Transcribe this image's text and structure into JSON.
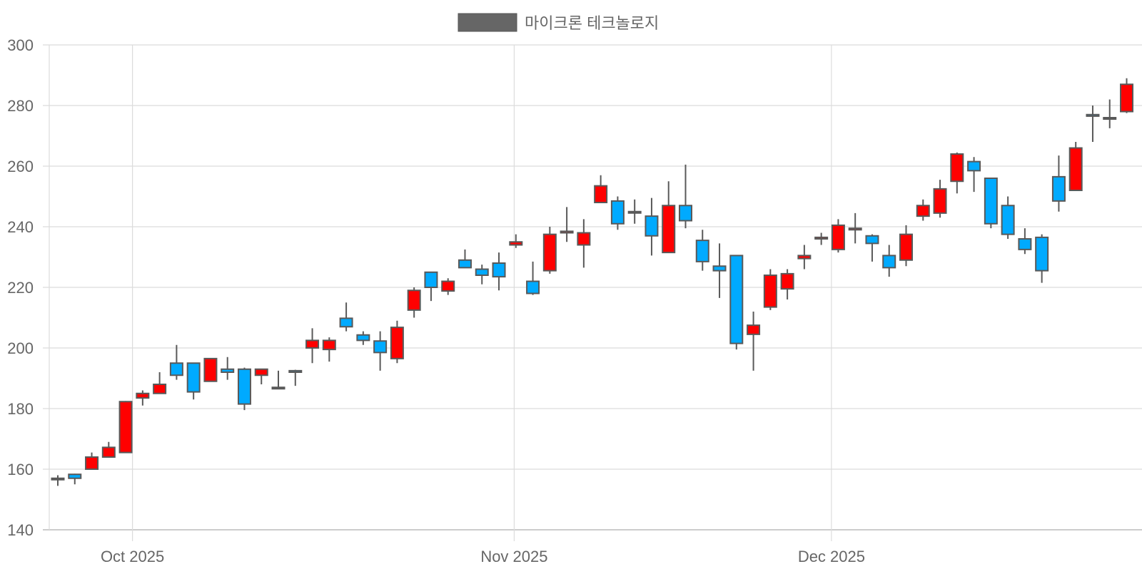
{
  "chart_data": {
    "type": "candlestick",
    "title": "",
    "legend": {
      "label": "마이크론 테크놀로지",
      "swatch_color": "#666666",
      "position": "top-center"
    },
    "colors": {
      "up": "#ff0000",
      "down": "#00aaff",
      "outline": "#595959",
      "grid": "#dcdcdc",
      "axis_text": "#666666"
    },
    "xlabel": "",
    "ylabel": "",
    "ylim": [
      140,
      300
    ],
    "y_ticks": [
      140,
      160,
      180,
      200,
      220,
      240,
      260,
      280,
      300
    ],
    "x_ticks": [
      {
        "label": "Oct 2025",
        "index": 4.4
      },
      {
        "label": "Nov 2025",
        "index": 26.9
      },
      {
        "label": "Dec 2025",
        "index": 45.6
      }
    ],
    "grid": true,
    "candles": [
      {
        "o": 157.0,
        "h": 158.0,
        "l": 154.5,
        "c": 156.8
      },
      {
        "o": 158.3,
        "h": 158.5,
        "l": 155.0,
        "c": 157.0
      },
      {
        "o": 160.0,
        "h": 165.5,
        "l": 160.0,
        "c": 164.0
      },
      {
        "o": 164.0,
        "h": 169.0,
        "l": 164.0,
        "c": 167.2
      },
      {
        "o": 165.5,
        "h": 182.5,
        "l": 165.5,
        "c": 182.3
      },
      {
        "o": 183.5,
        "h": 186.0,
        "l": 181.0,
        "c": 185.0
      },
      {
        "o": 185.0,
        "h": 192.0,
        "l": 185.0,
        "c": 188.0
      },
      {
        "o": 195.0,
        "h": 201.0,
        "l": 189.5,
        "c": 191.0
      },
      {
        "o": 195.0,
        "h": 195.0,
        "l": 183.0,
        "c": 185.5
      },
      {
        "o": 189.0,
        "h": 196.5,
        "l": 189.0,
        "c": 196.5
      },
      {
        "o": 193.0,
        "h": 197.0,
        "l": 189.5,
        "c": 192.0
      },
      {
        "o": 193.0,
        "h": 193.5,
        "l": 179.5,
        "c": 181.5
      },
      {
        "o": 191.0,
        "h": 193.0,
        "l": 188.0,
        "c": 193.0
      },
      {
        "o": 187.0,
        "h": 192.5,
        "l": 186.5,
        "c": 187.0
      },
      {
        "o": 192.5,
        "h": 192.8,
        "l": 187.5,
        "c": 192.0
      },
      {
        "o": 200.0,
        "h": 206.5,
        "l": 195.0,
        "c": 202.5
      },
      {
        "o": 199.5,
        "h": 203.5,
        "l": 195.5,
        "c": 202.5
      },
      {
        "o": 209.8,
        "h": 215.0,
        "l": 205.5,
        "c": 207.0
      },
      {
        "o": 204.3,
        "h": 205.5,
        "l": 201.0,
        "c": 202.5
      },
      {
        "o": 202.3,
        "h": 205.5,
        "l": 192.5,
        "c": 198.5
      },
      {
        "o": 196.5,
        "h": 209.0,
        "l": 195.0,
        "c": 206.8
      },
      {
        "o": 212.5,
        "h": 220.0,
        "l": 210.0,
        "c": 219.0
      },
      {
        "o": 225.0,
        "h": 225.0,
        "l": 215.5,
        "c": 220.0
      },
      {
        "o": 218.8,
        "h": 223.0,
        "l": 217.5,
        "c": 222.0
      },
      {
        "o": 229.0,
        "h": 232.5,
        "l": 226.5,
        "c": 226.5
      },
      {
        "o": 226.0,
        "h": 227.5,
        "l": 221.0,
        "c": 224.0
      },
      {
        "o": 228.0,
        "h": 231.5,
        "l": 219.0,
        "c": 223.5
      },
      {
        "o": 234.0,
        "h": 237.5,
        "l": 233.0,
        "c": 235.0
      },
      {
        "o": 222.0,
        "h": 228.5,
        "l": 217.5,
        "c": 218.0
      },
      {
        "o": 225.5,
        "h": 240.0,
        "l": 224.5,
        "c": 237.5
      },
      {
        "o": 238.0,
        "h": 246.5,
        "l": 235.0,
        "c": 238.5
      },
      {
        "o": 234.0,
        "h": 242.5,
        "l": 226.5,
        "c": 238.0
      },
      {
        "o": 248.0,
        "h": 257.0,
        "l": 248.0,
        "c": 253.5
      },
      {
        "o": 248.5,
        "h": 250.0,
        "l": 239.0,
        "c": 241.0
      },
      {
        "o": 245.0,
        "h": 249.0,
        "l": 241.0,
        "c": 245.0
      },
      {
        "o": 243.5,
        "h": 249.5,
        "l": 230.5,
        "c": 237.0
      },
      {
        "o": 231.5,
        "h": 255.0,
        "l": 231.5,
        "c": 247.0
      },
      {
        "o": 247.0,
        "h": 260.5,
        "l": 239.5,
        "c": 242.0
      },
      {
        "o": 235.5,
        "h": 239.0,
        "l": 225.5,
        "c": 228.5
      },
      {
        "o": 227.0,
        "h": 234.5,
        "l": 216.5,
        "c": 225.5
      },
      {
        "o": 230.5,
        "h": 230.5,
        "l": 199.5,
        "c": 201.5
      },
      {
        "o": 204.5,
        "h": 212.0,
        "l": 192.5,
        "c": 207.5
      },
      {
        "o": 213.5,
        "h": 226.0,
        "l": 212.5,
        "c": 224.0
      },
      {
        "o": 219.5,
        "h": 226.0,
        "l": 216.0,
        "c": 224.5
      },
      {
        "o": 229.5,
        "h": 234.0,
        "l": 226.0,
        "c": 230.5
      },
      {
        "o": 236.0,
        "h": 238.0,
        "l": 234.0,
        "c": 236.5
      },
      {
        "o": 232.5,
        "h": 242.5,
        "l": 231.5,
        "c": 240.5
      },
      {
        "o": 239.0,
        "h": 244.5,
        "l": 234.5,
        "c": 239.5
      },
      {
        "o": 237.0,
        "h": 237.5,
        "l": 228.5,
        "c": 234.5
      },
      {
        "o": 230.5,
        "h": 234.0,
        "l": 223.5,
        "c": 226.5
      },
      {
        "o": 229.0,
        "h": 240.5,
        "l": 227.0,
        "c": 237.5
      },
      {
        "o": 243.5,
        "h": 249.0,
        "l": 242.0,
        "c": 247.0
      },
      {
        "o": 244.5,
        "h": 255.5,
        "l": 243.0,
        "c": 252.5
      },
      {
        "o": 255.0,
        "h": 264.5,
        "l": 251.0,
        "c": 264.0
      },
      {
        "o": 261.5,
        "h": 263.0,
        "l": 251.5,
        "c": 258.5
      },
      {
        "o": 256.0,
        "h": 256.0,
        "l": 239.5,
        "c": 241.0
      },
      {
        "o": 247.0,
        "h": 250.0,
        "l": 236.0,
        "c": 237.5
      },
      {
        "o": 236.0,
        "h": 239.5,
        "l": 231.0,
        "c": 232.5
      },
      {
        "o": 236.5,
        "h": 237.5,
        "l": 221.5,
        "c": 225.5
      },
      {
        "o": 256.5,
        "h": 263.5,
        "l": 245.0,
        "c": 248.5
      },
      {
        "o": 252.0,
        "h": 268.0,
        "l": 252.0,
        "c": 266.0
      },
      {
        "o": 277.0,
        "h": 280.0,
        "l": 268.0,
        "c": 276.5
      },
      {
        "o": 276.0,
        "h": 282.0,
        "l": 272.5,
        "c": 276.0
      },
      {
        "o": 278.0,
        "h": 289.0,
        "l": 277.5,
        "c": 287.0
      }
    ]
  }
}
